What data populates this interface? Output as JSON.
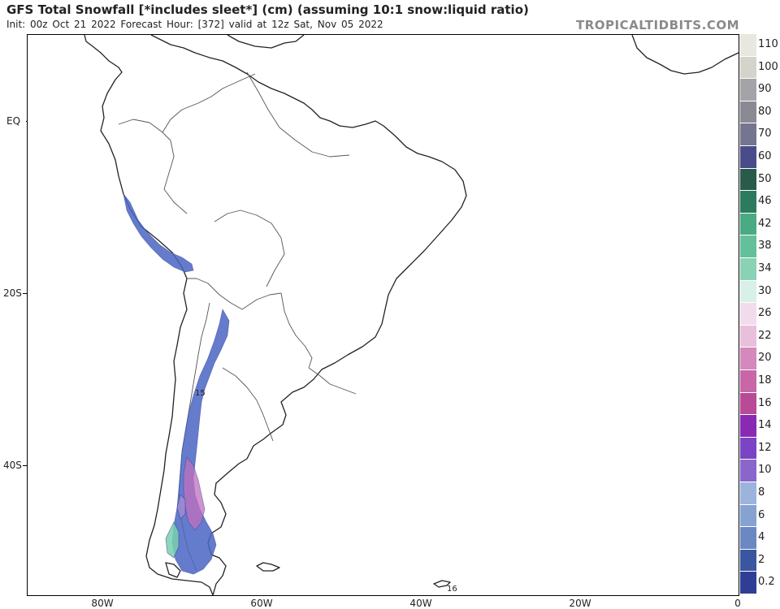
{
  "header": {
    "title": "GFS Total Snowfall [*includes sleet*] (cm) (assuming 10:1 snow:liquid ratio)",
    "subtitle": "Init: 00z Oct 21 2022   Forecast Hour: [372]   valid at 12z Sat, Nov 05 2022",
    "brand": "TROPICALTIDBITS.COM"
  },
  "axes": {
    "lat_labels": [
      "EQ",
      "20S",
      "40S"
    ],
    "lon_labels": [
      "80W",
      "60W",
      "40W",
      "20W",
      "0"
    ]
  },
  "map_labels": {
    "andes_max": "15",
    "south_georgia_max": "16"
  },
  "legend": {
    "levels": [
      "110",
      "100",
      "90",
      "80",
      "70",
      "60",
      "50",
      "46",
      "42",
      "38",
      "34",
      "30",
      "26",
      "22",
      "20",
      "18",
      "16",
      "14",
      "12",
      "10",
      "8",
      "6",
      "4",
      "2",
      "0.2"
    ],
    "colors": [
      "#e8e8e0",
      "#d4d4cc",
      "#bcbcb4",
      "#a4a4a8",
      "#8a8a94",
      "#747690",
      "#5c5e8e",
      "#4a4c8a",
      "#2a5a4a",
      "#2e7a5e",
      "#3a9270",
      "#4aaa84",
      "#64c09a",
      "#8ad2b4",
      "#b2e2d2",
      "#d8f0e8",
      "#f2dcec",
      "#e8c0dc",
      "#dea4cc",
      "#d488bc",
      "#c866a8",
      "#b84a96",
      "#a02a86",
      "#8a2ab4",
      "#7a44c4",
      "#8a66cc",
      "#9c88d6",
      "#9cb4dc",
      "#86a2d0",
      "#6c88c2",
      "#5470b2",
      "#3a56a0",
      "#2e3e94"
    ]
  }
}
